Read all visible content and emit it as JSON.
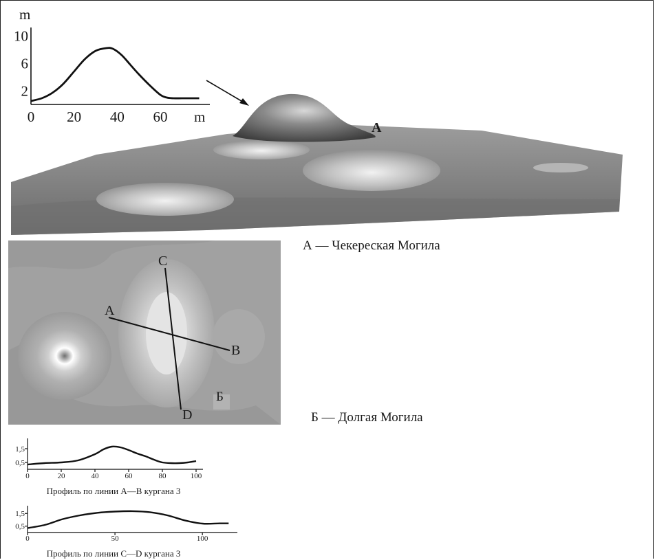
{
  "figure": {
    "label_a": "A",
    "caption_a": "А — Чекереская Могила",
    "caption_b": "Б — Долгая Могила",
    "map_labels": {
      "a": "A",
      "b": "B",
      "c": "C",
      "d": "D",
      "b_cyr": "Б"
    },
    "colors": {
      "surface_dark": "#4a4a4a",
      "surface_light": "#e8e8e8",
      "map_base": "#9a9a9a"
    }
  },
  "chart_data": [
    {
      "type": "line",
      "ylabel": "m",
      "xlabel": "m",
      "xlim": [
        0,
        82
      ],
      "ylim": [
        0,
        10
      ],
      "xticks": [
        "0",
        "20",
        "40",
        "60"
      ],
      "yticks": [
        "2",
        "6",
        "10"
      ],
      "x": [
        0,
        5,
        10,
        15,
        20,
        25,
        30,
        35,
        38,
        42,
        46,
        50,
        55,
        60,
        63,
        66,
        70,
        75,
        78
      ],
      "y": [
        0.5,
        0.9,
        1.7,
        3.0,
        4.8,
        6.6,
        7.8,
        8.2,
        8.1,
        7.2,
        5.8,
        4.4,
        2.8,
        1.4,
        1.0,
        0.9,
        0.9,
        0.9,
        0.9
      ]
    },
    {
      "type": "line",
      "title": "Профиль по линии A—B кургана 3",
      "xlim": [
        0,
        100
      ],
      "ylim": [
        0,
        2
      ],
      "xticks": [
        "0",
        "20",
        "40",
        "60",
        "80",
        "100"
      ],
      "yticks": [
        "0,5",
        "1,5"
      ],
      "x": [
        0,
        10,
        20,
        30,
        40,
        45,
        50,
        55,
        60,
        65,
        70,
        75,
        80,
        85,
        90,
        95,
        100
      ],
      "y": [
        0.35,
        0.45,
        0.5,
        0.65,
        1.1,
        1.45,
        1.65,
        1.6,
        1.4,
        1.15,
        0.95,
        0.7,
        0.5,
        0.45,
        0.45,
        0.5,
        0.6
      ]
    },
    {
      "type": "line",
      "title": "Профиль по линии C—D кургана 3",
      "xlim": [
        0,
        120
      ],
      "ylim": [
        0,
        2
      ],
      "xticks": [
        "0",
        "50",
        "100"
      ],
      "yticks": [
        "0,5",
        "1,5"
      ],
      "x": [
        0,
        10,
        20,
        30,
        40,
        50,
        60,
        70,
        80,
        90,
        100,
        110,
        115
      ],
      "y": [
        0.35,
        0.6,
        1.05,
        1.35,
        1.55,
        1.65,
        1.68,
        1.6,
        1.35,
        0.95,
        0.7,
        0.72,
        0.72
      ]
    }
  ]
}
